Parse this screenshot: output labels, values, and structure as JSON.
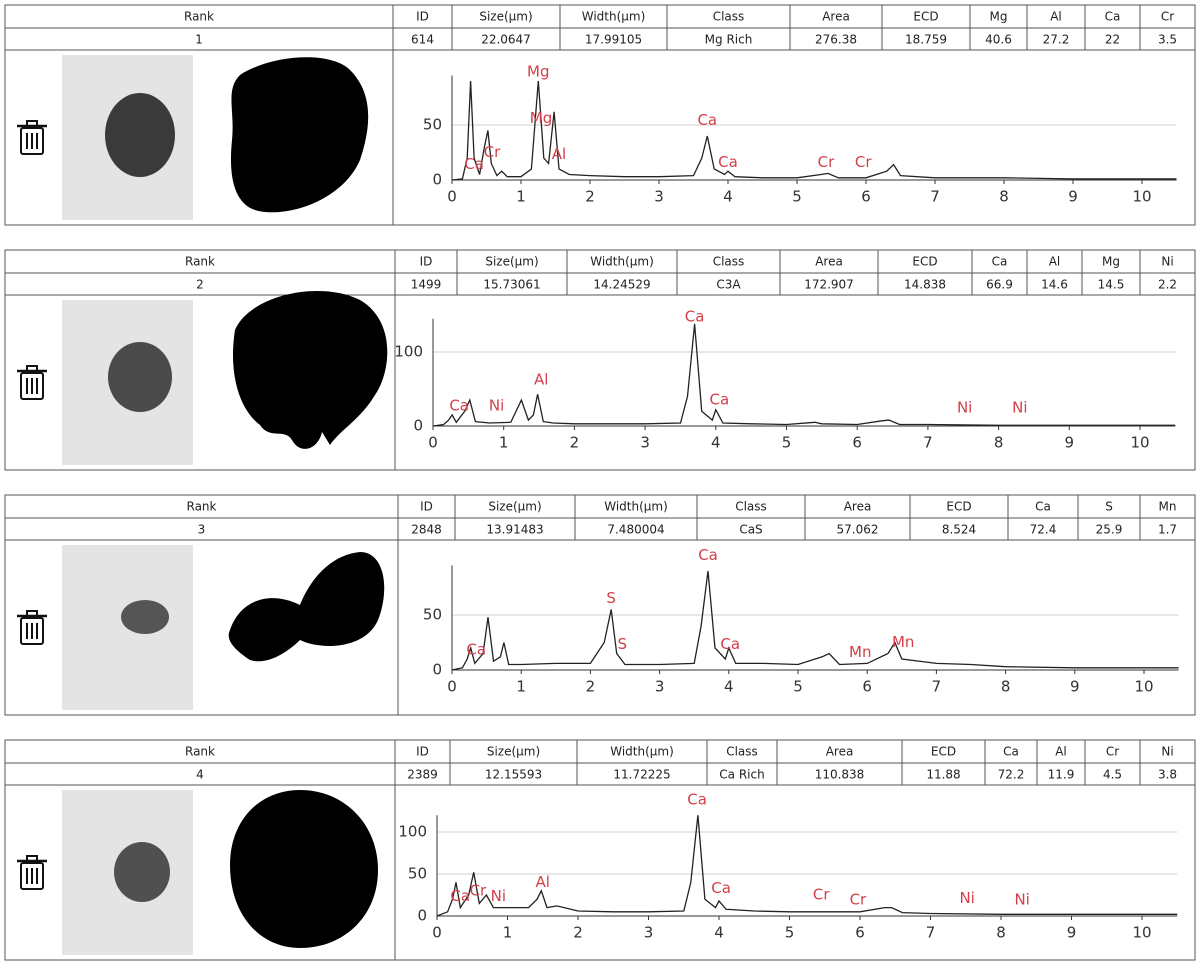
{
  "records": [
    {
      "table": {
        "headers": [
          "Rank",
          "ID",
          "Size(µm)",
          "Width(µm)",
          "Class",
          "Area",
          "ECD",
          "Mg",
          "Al",
          "Ca",
          "Cr"
        ],
        "values": [
          "1",
          "614",
          "22.0647",
          "17.99105",
          "Mg Rich",
          "276.38",
          "18.759",
          "40.6",
          "27.2",
          "22",
          "3.5"
        ]
      },
      "chart": {
        "type": "line",
        "xlim": [
          0,
          10.5
        ],
        "ylim": [
          0,
          95
        ],
        "xticks": [
          0,
          1,
          2,
          3,
          4,
          5,
          6,
          7,
          8,
          9,
          10
        ],
        "yticks": [
          0,
          50
        ],
        "grid": true,
        "color": "#222222",
        "x": [
          0,
          0.15,
          0.22,
          0.27,
          0.32,
          0.4,
          0.47,
          0.52,
          0.57,
          0.65,
          0.72,
          0.8,
          1.0,
          1.15,
          1.25,
          1.33,
          1.4,
          1.48,
          1.55,
          1.7,
          2,
          2.5,
          3,
          3.5,
          3.62,
          3.7,
          3.8,
          3.95,
          4.0,
          4.1,
          4.5,
          5,
          5.35,
          5.45,
          5.6,
          6,
          6.3,
          6.4,
          6.5,
          7,
          8,
          9,
          10,
          10.5
        ],
        "values": [
          0,
          1,
          20,
          90,
          20,
          5,
          30,
          45,
          15,
          4,
          8,
          3,
          3,
          10,
          90,
          20,
          15,
          62,
          10,
          5,
          4,
          3,
          3,
          4,
          20,
          40,
          10,
          5,
          8,
          3,
          2,
          2,
          5,
          6,
          2,
          2,
          8,
          14,
          4,
          2,
          2,
          1,
          1,
          1
        ],
        "annotations": [
          {
            "text": "Mg",
            "x": 1.25,
            "y": 98
          },
          {
            "text": "Mg",
            "x": 1.29,
            "y": 56
          },
          {
            "text": "Al",
            "x": 1.55,
            "y": 23
          },
          {
            "text": "Ca",
            "x": 3.7,
            "y": 54
          },
          {
            "text": "Ca",
            "x": 4.0,
            "y": 16
          },
          {
            "text": "Cr",
            "x": 5.42,
            "y": 16
          },
          {
            "text": "Cr",
            "x": 5.96,
            "y": 16
          },
          {
            "text": "Ca",
            "x": 0.32,
            "y": 14
          },
          {
            "text": "Cr",
            "x": 0.58,
            "y": 25
          }
        ]
      }
    },
    {
      "table": {
        "headers": [
          "Rank",
          "ID",
          "Size(µm)",
          "Width(µm)",
          "Class",
          "Area",
          "ECD",
          "Ca",
          "Al",
          "Mg",
          "Ni"
        ],
        "values": [
          "2",
          "1499",
          "15.73061",
          "14.24529",
          "C3A",
          "172.907",
          "14.838",
          "66.9",
          "14.6",
          "14.5",
          "2.2"
        ]
      },
      "chart": {
        "type": "line",
        "xlim": [
          0,
          10.5
        ],
        "ylim": [
          0,
          145
        ],
        "xticks": [
          0,
          1,
          2,
          3,
          4,
          5,
          6,
          7,
          8,
          9,
          10
        ],
        "yticks": [
          0,
          100
        ],
        "grid": true,
        "color": "#222222",
        "x": [
          0,
          0.15,
          0.22,
          0.27,
          0.33,
          0.45,
          0.52,
          0.6,
          0.8,
          1.1,
          1.25,
          1.35,
          1.42,
          1.48,
          1.56,
          1.7,
          2,
          2.5,
          3,
          3.5,
          3.6,
          3.7,
          3.8,
          3.95,
          4.0,
          4.1,
          4.5,
          5,
          5.4,
          5.5,
          6,
          6.35,
          6.45,
          6.6,
          7,
          8,
          9,
          10,
          10.5
        ],
        "values": [
          0,
          2,
          8,
          15,
          5,
          20,
          35,
          6,
          4,
          5,
          35,
          8,
          15,
          43,
          6,
          4,
          3,
          3,
          3,
          4,
          40,
          138,
          20,
          8,
          22,
          4,
          3,
          2,
          5,
          3,
          2,
          7,
          8,
          2,
          2,
          1,
          1,
          1,
          1
        ],
        "annotations": [
          {
            "text": "Ca",
            "x": 3.7,
            "y": 147
          },
          {
            "text": "Al",
            "x": 1.53,
            "y": 62
          },
          {
            "text": "Ca",
            "x": 0.37,
            "y": 27
          },
          {
            "text": "Ni",
            "x": 0.9,
            "y": 27
          },
          {
            "text": "Ca",
            "x": 4.05,
            "y": 35
          },
          {
            "text": "Ni",
            "x": 7.52,
            "y": 24
          },
          {
            "text": "Ni",
            "x": 8.3,
            "y": 24
          }
        ]
      }
    },
    {
      "table": {
        "headers": [
          "Rank",
          "ID",
          "Size(µm)",
          "Width(µm)",
          "Class",
          "Area",
          "ECD",
          "Ca",
          "S",
          "Mn"
        ],
        "values": [
          "3",
          "2848",
          "13.91483",
          "7.480004",
          "CaS",
          "57.062",
          "8.524",
          "72.4",
          "25.9",
          "1.7"
        ]
      },
      "chart": {
        "type": "line",
        "xlim": [
          0,
          10.5
        ],
        "ylim": [
          0,
          95
        ],
        "xticks": [
          0,
          1,
          2,
          3,
          4,
          5,
          6,
          7,
          8,
          9,
          10
        ],
        "yticks": [
          0,
          50
        ],
        "grid": true,
        "color": "#222222",
        "x": [
          0,
          0.15,
          0.22,
          0.27,
          0.33,
          0.45,
          0.52,
          0.6,
          0.7,
          0.75,
          0.82,
          1,
          1.5,
          2,
          2.2,
          2.3,
          2.38,
          2.5,
          3,
          3.5,
          3.6,
          3.7,
          3.8,
          3.95,
          4.0,
          4.1,
          4.5,
          5,
          5.35,
          5.45,
          5.6,
          6,
          6.3,
          6.4,
          6.5,
          7,
          7.5,
          8,
          9,
          10,
          10.5
        ],
        "values": [
          0,
          2,
          10,
          20,
          6,
          15,
          48,
          8,
          12,
          25,
          5,
          5,
          6,
          6,
          25,
          55,
          15,
          5,
          5,
          6,
          40,
          90,
          20,
          10,
          20,
          6,
          6,
          5,
          12,
          15,
          5,
          6,
          15,
          25,
          10,
          6,
          5,
          3,
          2,
          2,
          2
        ],
        "annotations": [
          {
            "text": "Ca",
            "x": 3.7,
            "y": 104
          },
          {
            "text": "S",
            "x": 2.3,
            "y": 65
          },
          {
            "text": "S",
            "x": 2.46,
            "y": 23
          },
          {
            "text": "Ca",
            "x": 0.35,
            "y": 18
          },
          {
            "text": "Ca",
            "x": 4.02,
            "y": 23
          },
          {
            "text": "Mn",
            "x": 5.9,
            "y": 16
          },
          {
            "text": "Mn",
            "x": 6.52,
            "y": 25
          }
        ]
      }
    },
    {
      "table": {
        "headers": [
          "Rank",
          "ID",
          "Size(µm)",
          "Width(µm)",
          "Class",
          "Area",
          "ECD",
          "Ca",
          "Al",
          "Cr",
          "Ni"
        ],
        "values": [
          "4",
          "2389",
          "12.15593",
          "11.72225",
          "Ca Rich",
          "110.838",
          "11.88",
          "72.2",
          "11.9",
          "4.5",
          "3.8"
        ]
      },
      "chart": {
        "type": "line",
        "xlim": [
          0,
          10.5
        ],
        "ylim": [
          0,
          120
        ],
        "xticks": [
          0,
          1,
          2,
          3,
          4,
          5,
          6,
          7,
          8,
          9,
          10
        ],
        "yticks": [
          0,
          50,
          100
        ],
        "grid": true,
        "color": "#222222",
        "x": [
          0,
          0.15,
          0.22,
          0.27,
          0.33,
          0.45,
          0.52,
          0.6,
          0.7,
          0.8,
          1,
          1.3,
          1.42,
          1.48,
          1.56,
          1.7,
          2,
          2.5,
          3,
          3.5,
          3.6,
          3.7,
          3.8,
          3.95,
          4.0,
          4.1,
          4.5,
          5,
          5.5,
          6,
          6.35,
          6.45,
          6.6,
          7,
          8,
          9,
          10,
          10.5
        ],
        "values": [
          0,
          5,
          20,
          40,
          10,
          25,
          52,
          15,
          25,
          10,
          10,
          10,
          20,
          30,
          10,
          12,
          6,
          5,
          5,
          6,
          40,
          120,
          20,
          10,
          18,
          8,
          6,
          5,
          5,
          5,
          10,
          10,
          4,
          3,
          2,
          2,
          2,
          2
        ],
        "annotations": [
          {
            "text": "Ca",
            "x": 3.69,
            "y": 138
          },
          {
            "text": "Al",
            "x": 1.5,
            "y": 40
          },
          {
            "text": "Ca",
            "x": 0.33,
            "y": 23
          },
          {
            "text": "Cr",
            "x": 0.58,
            "y": 30
          },
          {
            "text": "Ni",
            "x": 0.87,
            "y": 23
          },
          {
            "text": "Ca",
            "x": 4.03,
            "y": 33
          },
          {
            "text": "Cr",
            "x": 5.45,
            "y": 25
          },
          {
            "text": "Cr",
            "x": 5.97,
            "y": 19
          },
          {
            "text": "Ni",
            "x": 7.52,
            "y": 21
          },
          {
            "text": "Ni",
            "x": 8.3,
            "y": 19
          }
        ]
      }
    }
  ]
}
